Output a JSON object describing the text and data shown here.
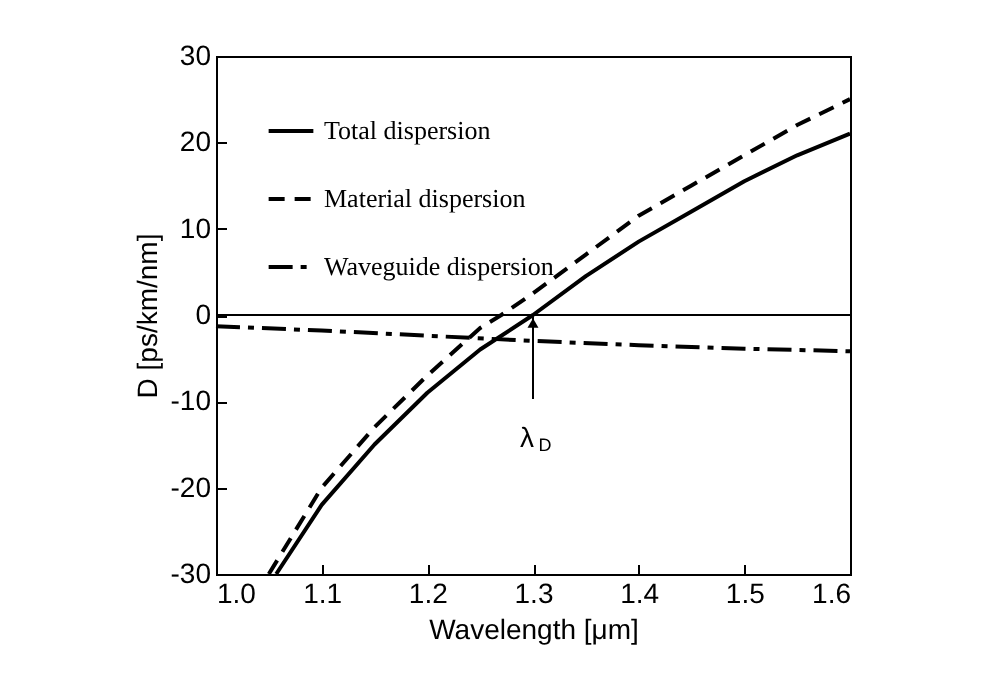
{
  "chart_data": {
    "type": "line",
    "xlabel": "Wavelength [μm]",
    "ylabel": "D  [ps/km/nm]",
    "xlim": [
      1.0,
      1.6
    ],
    "ylim": [
      -30,
      30
    ],
    "xticks": [
      {
        "value": 1.0,
        "label": "1.0"
      },
      1.1,
      1.2,
      1.3,
      1.4,
      1.5,
      {
        "value": 1.6,
        "label": "1.6"
      }
    ],
    "yticks": [
      -30,
      -20,
      -10,
      0,
      10,
      20,
      30
    ],
    "legend": "top left",
    "grid": false,
    "marker": "none",
    "series": [
      {
        "name": "Total dispersion",
        "color": "#000000",
        "line_style": "solid",
        "x": [
          1.057,
          1.1,
          1.15,
          1.2,
          1.25,
          1.3,
          1.35,
          1.4,
          1.45,
          1.5,
          1.55,
          1.6
        ],
        "values": [
          -30,
          -22,
          -15,
          -9,
          -4,
          0,
          4.5,
          8.5,
          12,
          15.5,
          18.5,
          21
        ]
      },
      {
        "name": "Material dispersion",
        "color": "#000000",
        "line_style": "dashed",
        "x": [
          1.05,
          1.1,
          1.15,
          1.2,
          1.25,
          1.27,
          1.3,
          1.35,
          1.4,
          1.45,
          1.5,
          1.55,
          1.6
        ],
        "values": [
          -30,
          -20,
          -13,
          -7,
          -1.5,
          0,
          2.5,
          7,
          11.5,
          15,
          18.5,
          22,
          25
        ]
      },
      {
        "name": "Waveguide dispersion",
        "color": "#000000",
        "line_style": "dashdot",
        "x": [
          1.0,
          1.1,
          1.2,
          1.3,
          1.4,
          1.5,
          1.6
        ],
        "values": [
          -1.3,
          -1.8,
          -2.4,
          -3,
          -3.5,
          -3.9,
          -4.2
        ]
      }
    ],
    "ref_lines": [
      {
        "axis": "y",
        "value": 0,
        "color": "#000000"
      }
    ],
    "annotations": [
      {
        "text": "λ$_{D}$",
        "x": 1.3,
        "y": 0
      }
    ]
  }
}
